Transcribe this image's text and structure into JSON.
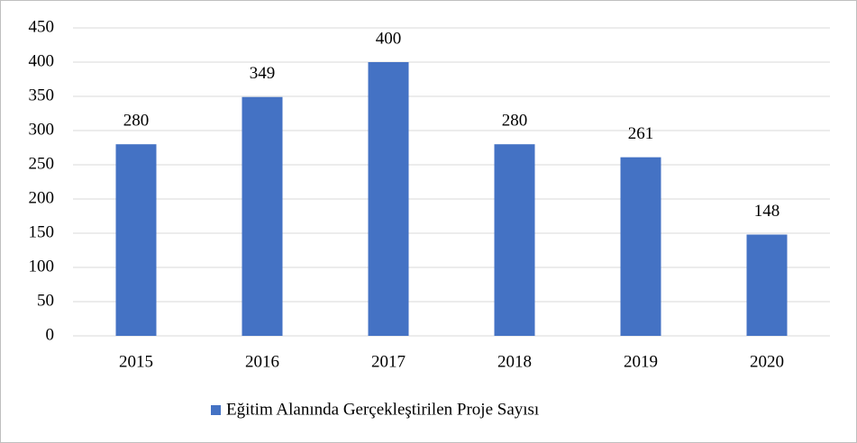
{
  "chart_data": {
    "type": "bar",
    "categories": [
      "2015",
      "2016",
      "2017",
      "2018",
      "2019",
      "2020"
    ],
    "series": [
      {
        "name": "Eğitim Alanında Gerçekleştirilen Proje Sayısı",
        "color": "#4472c4",
        "values": [
          280,
          349,
          400,
          280,
          261,
          148
        ]
      }
    ],
    "ylim": [
      0,
      450
    ],
    "yticks": [
      0,
      50,
      100,
      150,
      200,
      250,
      300,
      350,
      400,
      450
    ],
    "grid": true,
    "legend": "bottom",
    "data_labels": true
  }
}
